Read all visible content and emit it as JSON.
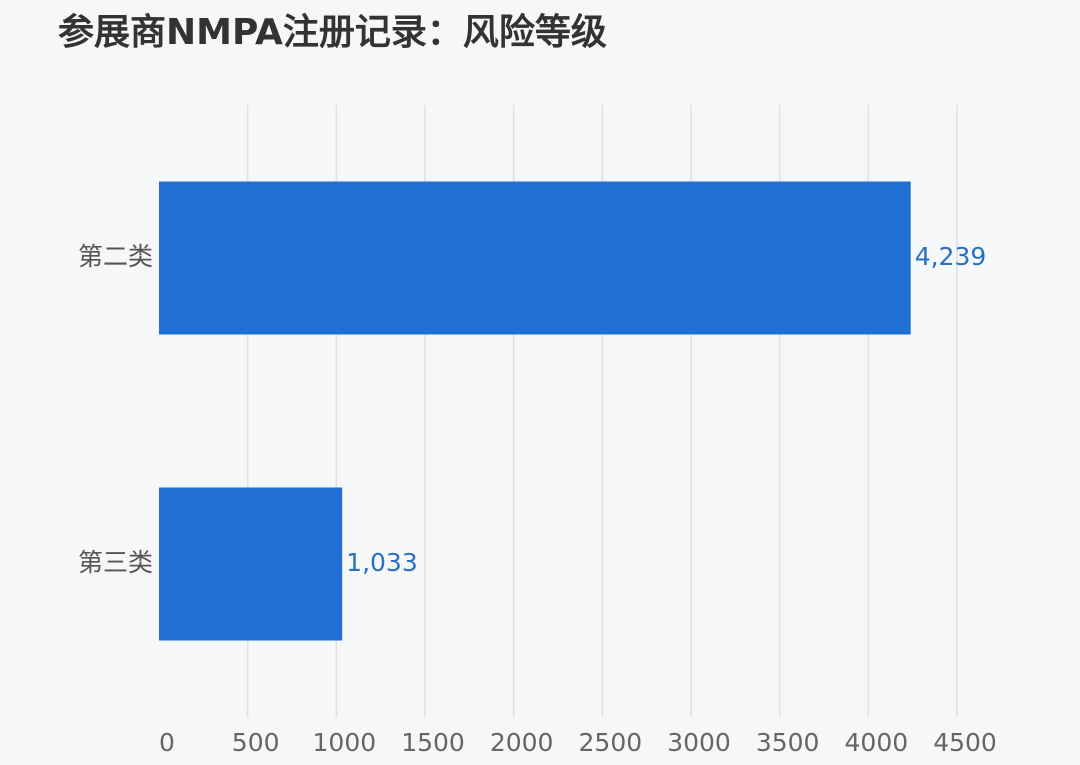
{
  "chart_data": {
    "type": "bar",
    "orientation": "horizontal",
    "title": "参展商NMPA注册记录：风险等级",
    "categories": [
      "第二类",
      "第三类"
    ],
    "values": [
      4239,
      1033
    ],
    "value_labels": [
      "4,239",
      "1,033"
    ],
    "color": "#1f6fd4",
    "xlim": [
      0,
      4500
    ],
    "xticks": [
      0,
      500,
      1000,
      1500,
      2000,
      2500,
      3000,
      3500,
      4000,
      4500
    ],
    "grid": true
  }
}
